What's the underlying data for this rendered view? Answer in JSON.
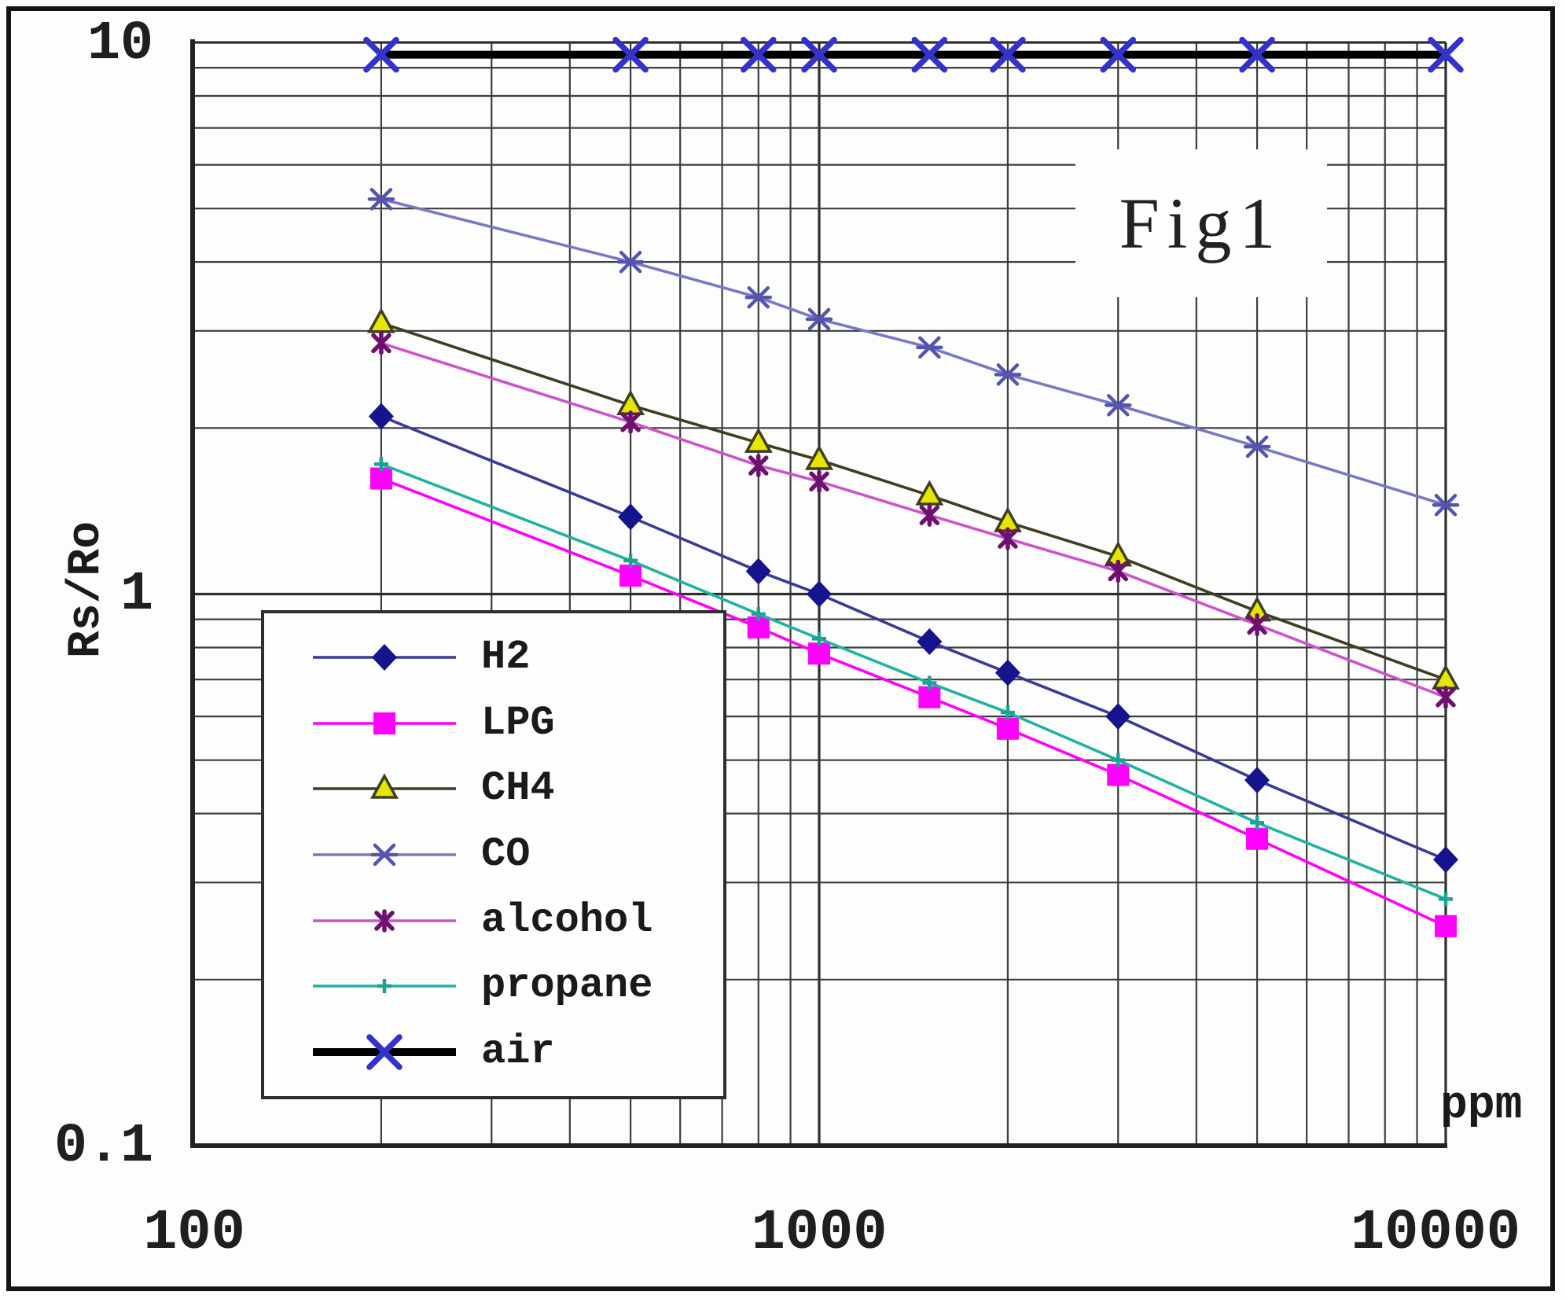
{
  "figure": {
    "title": "Fig1"
  },
  "axes": {
    "y": {
      "label": "Rs/Ro",
      "ticks": [
        "10",
        "1",
        "0.1"
      ]
    },
    "x": {
      "label": "ppm",
      "ticks": [
        "100",
        "1000",
        "10000"
      ]
    }
  },
  "legend": {
    "items": [
      "H2",
      "LPG",
      "CH4",
      "CO",
      "alcohol",
      "propane",
      "air"
    ]
  },
  "colors": {
    "grid": "#3d3d3d",
    "grid_major": "#2e2e2e",
    "axis": "#222222",
    "text": "#1a1a1a",
    "background": "#fdfdfd"
  },
  "chart_data": {
    "type": "line",
    "title": "Fig1",
    "xlabel": "ppm",
    "ylabel": "Rs/Ro",
    "x_scale": "log",
    "y_scale": "log",
    "xlim": [
      100,
      10000
    ],
    "ylim": [
      0.1,
      10
    ],
    "grid": true,
    "legend_position": "lower-left",
    "x": [
      200,
      500,
      800,
      1000,
      1500,
      2000,
      3000,
      5000,
      10000
    ],
    "series": [
      {
        "name": "H2",
        "line_color": "#3a3a99",
        "marker": "diamond",
        "marker_color": "#14148c",
        "values": [
          2.1,
          1.38,
          1.1,
          1.0,
          0.82,
          0.72,
          0.6,
          0.46,
          0.33
        ]
      },
      {
        "name": "LPG",
        "line_color": "#ff00ff",
        "marker": "square",
        "marker_color": "#ff00ff",
        "values": [
          1.62,
          1.08,
          0.87,
          0.78,
          0.65,
          0.57,
          0.47,
          0.36,
          0.25
        ]
      },
      {
        "name": "CH4",
        "line_color": "#3e3e20",
        "marker": "triangle",
        "marker_color": "#e6e600",
        "values": [
          3.1,
          2.2,
          1.88,
          1.75,
          1.51,
          1.35,
          1.17,
          0.93,
          0.7
        ]
      },
      {
        "name": "CO",
        "line_color": "#7878c8",
        "marker": "xstar",
        "marker_color": "#5555b0",
        "values": [
          5.2,
          4.0,
          3.45,
          3.15,
          2.8,
          2.5,
          2.2,
          1.85,
          1.45
        ]
      },
      {
        "name": "alcohol",
        "line_color": "#cc55cc",
        "marker": "star4",
        "marker_color": "#6e116e",
        "values": [
          2.85,
          2.05,
          1.71,
          1.6,
          1.39,
          1.26,
          1.1,
          0.88,
          0.65
        ]
      },
      {
        "name": "propane",
        "line_color": "#22b2a2",
        "marker": "plus",
        "marker_color": "#1da294",
        "values": [
          1.72,
          1.15,
          0.92,
          0.83,
          0.69,
          0.61,
          0.5,
          0.385,
          0.28
        ]
      },
      {
        "name": "air",
        "line_color": "#000000",
        "marker": "bigx",
        "marker_color": "#3333cc",
        "thick": true,
        "values": [
          9.5,
          9.5,
          9.5,
          9.5,
          9.5,
          9.5,
          9.5,
          9.5,
          9.5
        ]
      }
    ]
  }
}
